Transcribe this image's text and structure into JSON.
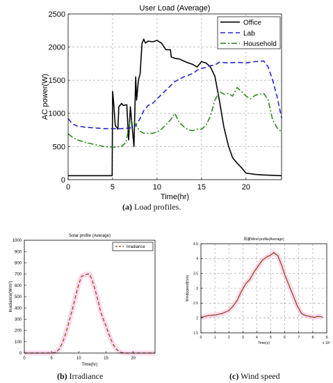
{
  "captions": {
    "a": {
      "label": "(a)",
      "text": " Load profiles."
    },
    "b": {
      "label": "(b)",
      "text": " Irradiance"
    },
    "c": {
      "label": "(c)",
      "text": " Wind speed"
    }
  },
  "chart_data": [
    {
      "type": "line",
      "title": "User Load (Average)",
      "xlabel": "Time(hr)",
      "ylabel": "AC power(W)",
      "xlim": [
        0,
        24
      ],
      "ylim": [
        0,
        2500
      ],
      "xticks": [
        0,
        5,
        10,
        15,
        20
      ],
      "yticks": [
        0,
        500,
        1000,
        1500,
        2000,
        2500
      ],
      "grid": true,
      "legend_position": "top-right",
      "series": [
        {
          "name": "Office",
          "color": "#000000",
          "dash": "solid",
          "x": [
            0,
            4.95,
            5,
            5.1,
            5.3,
            5.5,
            5.6,
            5.7,
            6,
            6.2,
            6.6,
            6.8,
            7,
            7.4,
            7.6,
            7.7,
            7.9,
            8.1,
            8.3,
            8.5,
            8.7,
            9,
            9.5,
            10,
            10.5,
            11,
            11.5,
            11.6,
            12,
            12.5,
            13,
            13.5,
            14,
            14.5,
            15,
            15.5,
            16,
            16.5,
            17,
            17.5,
            18,
            18.5,
            19,
            19.5,
            19.8,
            20,
            21,
            22,
            23,
            24
          ],
          "y": [
            60,
            60,
            1330,
            1200,
            820,
            780,
            760,
            1100,
            1150,
            1120,
            1130,
            600,
            1100,
            500,
            1550,
            1200,
            1500,
            1600,
            2050,
            2120,
            2060,
            2090,
            2080,
            2100,
            2060,
            1960,
            1960,
            1850,
            1830,
            1820,
            1790,
            1760,
            1740,
            1700,
            1780,
            1760,
            1700,
            1560,
            1200,
            800,
            520,
            330,
            250,
            180,
            130,
            100,
            80,
            70,
            65,
            60
          ]
        },
        {
          "name": "Lab",
          "color": "#2323c8",
          "dash": "7,4",
          "x": [
            0,
            0.5,
            1,
            2,
            3,
            4,
            5,
            6,
            7,
            7.5,
            8,
            8.5,
            9,
            9.5,
            10,
            11,
            12,
            13,
            14,
            14.5,
            15,
            15.5,
            16,
            16.5,
            17,
            18,
            19,
            20,
            21,
            22,
            22.5,
            23,
            23.5,
            24
          ],
          "y": [
            920,
            840,
            810,
            790,
            780,
            770,
            770,
            770,
            780,
            800,
            900,
            1040,
            1120,
            1150,
            1220,
            1350,
            1480,
            1550,
            1600,
            1650,
            1680,
            1690,
            1720,
            1730,
            1770,
            1760,
            1770,
            1760,
            1780,
            1790,
            1700,
            1500,
            1250,
            930
          ]
        },
        {
          "name": "Household",
          "color": "#2a8a1a",
          "dash": "8,3,2,3",
          "x": [
            0,
            0.5,
            1,
            2,
            3,
            4,
            5,
            6,
            6.5,
            7,
            7.5,
            8,
            8.5,
            9,
            9.5,
            10,
            10.5,
            11,
            11.5,
            12,
            12.5,
            13,
            13.5,
            14,
            14.5,
            15,
            15.5,
            16,
            16.5,
            17,
            17.5,
            18,
            18.5,
            19,
            19.5,
            20,
            20.5,
            21,
            21.5,
            22,
            22.5,
            23,
            23.5,
            24
          ],
          "y": [
            690,
            640,
            600,
            560,
            530,
            500,
            490,
            500,
            560,
            900,
            860,
            740,
            700,
            700,
            700,
            720,
            760,
            830,
            900,
            1000,
            860,
            800,
            750,
            740,
            760,
            760,
            820,
            960,
            1200,
            1330,
            1290,
            1300,
            1260,
            1390,
            1330,
            1260,
            1220,
            1270,
            1290,
            1300,
            1200,
            900,
            780,
            720
          ]
        }
      ]
    },
    {
      "type": "line",
      "title": "Solar profile (Average)",
      "xlabel": "Time(hr)",
      "ylabel": "Irradiance(W/m²)",
      "xlim": [
        0,
        24
      ],
      "ylim": [
        0,
        1000
      ],
      "xticks": [
        0,
        5,
        10,
        15,
        20
      ],
      "yticks": [
        0,
        100,
        200,
        300,
        400,
        500,
        600,
        700,
        800,
        900,
        1000
      ],
      "grid": false,
      "legend_position": "top-right",
      "series": [
        {
          "name": "Irradiance",
          "color": "#8b4513",
          "dash": "5,3",
          "x": [
            0,
            5,
            5.5,
            6,
            6.5,
            7,
            7.5,
            8,
            8.5,
            9,
            9.5,
            10,
            10.5,
            11,
            11.5,
            12,
            12.5,
            13,
            13.5,
            14,
            14.5,
            15,
            15.5,
            16,
            16.5,
            17,
            17.5,
            18,
            18.5,
            19,
            24
          ],
          "y": [
            0,
            0,
            3,
            15,
            40,
            90,
            160,
            240,
            330,
            420,
            520,
            610,
            680,
            690,
            700,
            700,
            640,
            560,
            470,
            370,
            300,
            240,
            170,
            110,
            60,
            30,
            10,
            3,
            0,
            0,
            0
          ]
        }
      ]
    },
    {
      "type": "line",
      "title": "风速Wind profile(Average)",
      "xlabel": "Time(s)",
      "ylabel": "Wind(speed(m/s)",
      "x_scale_label": "x 10⁴",
      "xlim": [
        0,
        9
      ],
      "ylim": [
        1.5,
        4.5
      ],
      "xticks": [
        0,
        1,
        2,
        3,
        4,
        5,
        6,
        7,
        8,
        9
      ],
      "yticks": [
        1.5,
        2,
        2.5,
        3,
        3.5,
        4,
        4.5
      ],
      "grid": true,
      "series": [
        {
          "name": "",
          "color": "#8b4513",
          "dash": "solid",
          "x": [
            0,
            0.5,
            1,
            1.5,
            2,
            2.3,
            2.6,
            2.9,
            3.2,
            3.5,
            3.8,
            4.1,
            4.4,
            4.7,
            5,
            5.2,
            5.5,
            5.8,
            6,
            6.3,
            6.6,
            6.9,
            7.2,
            7.5,
            7.8,
            8.1,
            8.4,
            8.7
          ],
          "y": [
            2.02,
            2.08,
            2.1,
            2.15,
            2.25,
            2.4,
            2.6,
            2.9,
            3.15,
            3.3,
            3.55,
            3.75,
            3.95,
            4.05,
            4.12,
            4.2,
            4.1,
            3.75,
            3.45,
            3.1,
            2.75,
            2.4,
            2.15,
            2.08,
            2.05,
            2.02,
            2.06,
            2.03
          ]
        }
      ]
    }
  ]
}
